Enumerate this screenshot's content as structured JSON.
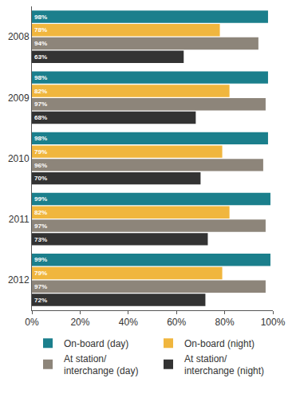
{
  "chart_data": {
    "type": "bar",
    "orientation": "horizontal",
    "categories": [
      "2008",
      "2009",
      "2010",
      "2011",
      "2012"
    ],
    "series": [
      {
        "name": "On-board (day)",
        "color": "#1b7f8c",
        "values": [
          98,
          98,
          98,
          99,
          99
        ],
        "value_labels": [
          "98%",
          "98%",
          "98%",
          "99%",
          "99%"
        ]
      },
      {
        "name": "On-board (night)",
        "color": "#f0b63e",
        "values": [
          78,
          82,
          79,
          82,
          79
        ],
        "value_labels": [
          "78%",
          "82%",
          "79%",
          "82%",
          "79%"
        ]
      },
      {
        "name": "At station/interchange (day)",
        "color": "#8d857a",
        "values": [
          94,
          97,
          96,
          97,
          97
        ],
        "value_labels": [
          "94%",
          "97%",
          "96%",
          "97%",
          "97%"
        ]
      },
      {
        "name": "At station/interchange (night)",
        "color": "#333333",
        "values": [
          63,
          68,
          70,
          73,
          72
        ],
        "value_labels": [
          "63%",
          "68%",
          "70%",
          "73%",
          "72%"
        ]
      }
    ],
    "xlim": [
      0,
      100
    ],
    "xticks": [
      {
        "value": 0,
        "label": "0%"
      },
      {
        "value": 20,
        "label": "20%"
      },
      {
        "value": 40,
        "label": "40%"
      },
      {
        "value": 60,
        "label": "60%"
      },
      {
        "value": 80,
        "label": "80%"
      },
      {
        "value": 100,
        "label": "100%"
      }
    ],
    "grid": false,
    "data_labels": true,
    "legend": "bottom"
  }
}
